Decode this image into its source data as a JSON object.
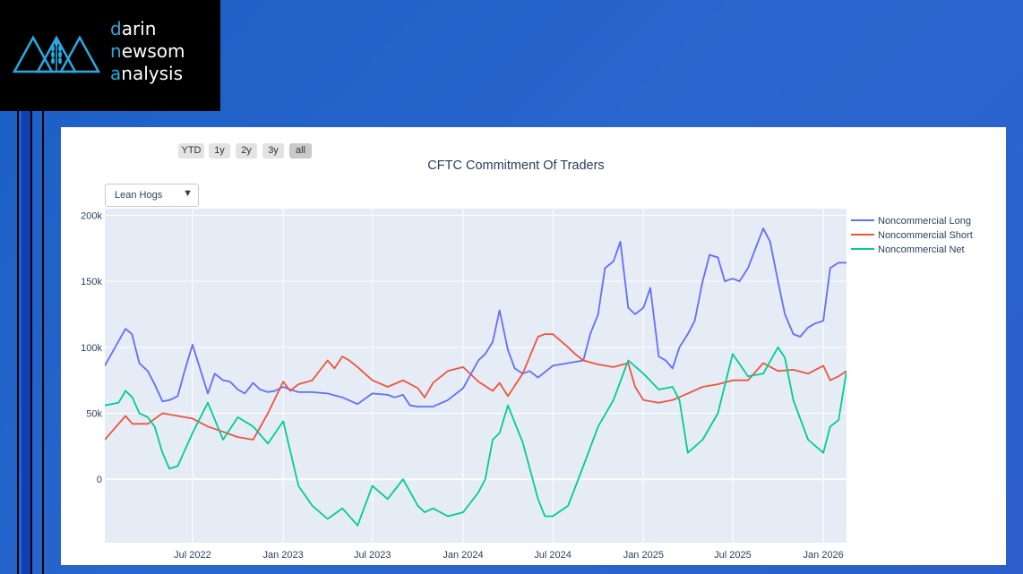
{
  "logo": {
    "lines": [
      {
        "first": "d",
        "rest": "arin"
      },
      {
        "first": "n",
        "rest": "ewsom"
      },
      {
        "first": "a",
        "rest": "nalysis"
      }
    ]
  },
  "colors": {
    "long": "#636efa",
    "short": "#ef553b",
    "net": "#00cc96",
    "plot_bg": "#e5ecf6",
    "accent": "#29a9e1"
  },
  "range_buttons": [
    "YTD",
    "1y",
    "2y",
    "3y",
    "all"
  ],
  "active_range": "all",
  "dropdown": {
    "selected": "Lean Hogs"
  },
  "chart_data": {
    "type": "line",
    "title": "CFTC Commitment Of Traders",
    "xlabel": "",
    "ylabel": "",
    "ylim": [
      -48000,
      205000
    ],
    "yticks": [
      0,
      50000,
      100000,
      150000,
      200000
    ],
    "ytick_labels": [
      "0",
      "50k",
      "100k",
      "150k",
      "200k"
    ],
    "x_start": "2022-01-04",
    "x_end": "2026-02-17",
    "xticks": [
      "2022-07-01",
      "2023-01-01",
      "2023-07-01",
      "2024-01-01",
      "2024-07-01",
      "2025-01-01",
      "2025-07-01",
      "2026-01-01"
    ],
    "xtick_labels": [
      "Jul 2022",
      "Jan 2023",
      "Jul 2023",
      "Jan 2024",
      "Jul 2024",
      "Jan 2025",
      "Jul 2025",
      "Jan 2026"
    ],
    "grid": true,
    "legend_position": "right",
    "series": [
      {
        "name": "Noncommercial Long",
        "x": [
          "2022-01-04",
          "2022-02-15",
          "2022-02-28",
          "2022-03-15",
          "2022-04-01",
          "2022-04-15",
          "2022-05-01",
          "2022-05-15",
          "2022-06-01",
          "2022-06-15",
          "2022-07-01",
          "2022-08-01",
          "2022-08-15",
          "2022-09-01",
          "2022-09-15",
          "2022-10-01",
          "2022-10-15",
          "2022-11-01",
          "2022-11-15",
          "2022-12-01",
          "2022-12-15",
          "2023-01-01",
          "2023-01-15",
          "2023-02-01",
          "2023-03-01",
          "2023-04-01",
          "2023-05-01",
          "2023-06-01",
          "2023-07-01",
          "2023-08-01",
          "2023-08-15",
          "2023-09-01",
          "2023-09-15",
          "2023-10-01",
          "2023-11-01",
          "2023-12-01",
          "2024-01-01",
          "2024-02-01",
          "2024-02-15",
          "2024-03-01",
          "2024-03-15",
          "2024-04-01",
          "2024-04-15",
          "2024-05-01",
          "2024-05-15",
          "2024-06-01",
          "2024-07-01",
          "2024-08-01",
          "2024-09-01",
          "2024-09-15",
          "2024-10-01",
          "2024-10-15",
          "2024-11-01",
          "2024-11-15",
          "2024-12-01",
          "2024-12-15",
          "2025-01-01",
          "2025-01-15",
          "2025-02-01",
          "2025-02-15",
          "2025-03-01",
          "2025-03-15",
          "2025-04-01",
          "2025-04-15",
          "2025-05-01",
          "2025-05-15",
          "2025-06-01",
          "2025-06-15",
          "2025-07-01",
          "2025-07-15",
          "2025-08-01",
          "2025-09-01",
          "2025-09-15",
          "2025-10-01",
          "2025-10-15",
          "2025-11-01",
          "2025-11-15",
          "2025-12-01",
          "2025-12-15",
          "2026-01-01",
          "2026-01-15",
          "2026-02-01",
          "2026-02-17"
        ],
        "values": [
          86000,
          114000,
          110000,
          88000,
          82000,
          72000,
          59000,
          60000,
          63000,
          82000,
          102000,
          65000,
          80000,
          75000,
          74000,
          68000,
          65000,
          73000,
          68000,
          66000,
          67000,
          70000,
          68000,
          66000,
          66000,
          65000,
          62000,
          57000,
          65000,
          64000,
          62000,
          64000,
          56000,
          55000,
          55000,
          60000,
          69000,
          90000,
          95000,
          104000,
          128000,
          98000,
          84000,
          80000,
          82000,
          77000,
          86000,
          88000,
          90000,
          110000,
          125000,
          160000,
          165000,
          180000,
          130000,
          125000,
          130000,
          145000,
          93000,
          90000,
          84000,
          100000,
          110000,
          120000,
          150000,
          170000,
          168000,
          150000,
          152000,
          150000,
          160000,
          190000,
          180000,
          150000,
          125000,
          110000,
          108000,
          115000,
          118000,
          120000,
          160000,
          164000,
          164000
        ]
      },
      {
        "name": "Noncommercial Short",
        "x": [
          "2022-01-04",
          "2022-02-15",
          "2022-03-01",
          "2022-04-01",
          "2022-05-01",
          "2022-06-01",
          "2022-07-01",
          "2022-08-01",
          "2022-09-01",
          "2022-10-01",
          "2022-11-01",
          "2022-12-01",
          "2023-01-01",
          "2023-01-15",
          "2023-02-01",
          "2023-03-01",
          "2023-04-01",
          "2023-04-15",
          "2023-05-01",
          "2023-05-15",
          "2023-06-01",
          "2023-07-01",
          "2023-08-01",
          "2023-09-01",
          "2023-10-01",
          "2023-10-15",
          "2023-11-01",
          "2023-12-01",
          "2024-01-01",
          "2024-02-01",
          "2024-03-01",
          "2024-03-15",
          "2024-04-01",
          "2024-05-01",
          "2024-06-01",
          "2024-06-15",
          "2024-07-01",
          "2024-08-01",
          "2024-08-15",
          "2024-09-01",
          "2024-10-01",
          "2024-11-01",
          "2024-12-01",
          "2024-12-15",
          "2025-01-01",
          "2025-02-01",
          "2025-03-01",
          "2025-04-01",
          "2025-05-01",
          "2025-06-01",
          "2025-07-01",
          "2025-08-01",
          "2025-09-01",
          "2025-10-01",
          "2025-11-01",
          "2025-12-01",
          "2026-01-01",
          "2026-01-15",
          "2026-02-01",
          "2026-02-17"
        ],
        "values": [
          30000,
          48000,
          42000,
          42000,
          50000,
          48000,
          46000,
          40000,
          36000,
          32000,
          30000,
          50000,
          74000,
          67000,
          72000,
          75000,
          90000,
          84000,
          93000,
          90000,
          85000,
          75000,
          70000,
          75000,
          69000,
          62000,
          73000,
          82000,
          85000,
          74000,
          67000,
          73000,
          63000,
          80000,
          108000,
          110000,
          110000,
          100000,
          95000,
          90000,
          87000,
          85000,
          88000,
          70000,
          60000,
          58000,
          60000,
          65000,
          70000,
          72000,
          75000,
          75000,
          88000,
          82000,
          83000,
          80000,
          86000,
          75000,
          78000,
          82000
        ]
      },
      {
        "name": "Noncommercial Net",
        "x": [
          "2022-01-04",
          "2022-02-01",
          "2022-02-15",
          "2022-03-01",
          "2022-03-15",
          "2022-04-01",
          "2022-04-15",
          "2022-05-01",
          "2022-05-15",
          "2022-06-01",
          "2022-07-01",
          "2022-08-01",
          "2022-09-01",
          "2022-10-01",
          "2022-11-01",
          "2022-12-01",
          "2023-01-01",
          "2023-02-01",
          "2023-03-01",
          "2023-04-01",
          "2023-05-01",
          "2023-06-01",
          "2023-07-01",
          "2023-08-01",
          "2023-09-01",
          "2023-10-01",
          "2023-10-15",
          "2023-11-01",
          "2023-12-01",
          "2024-01-01",
          "2024-02-01",
          "2024-02-15",
          "2024-03-01",
          "2024-03-15",
          "2024-04-01",
          "2024-05-01",
          "2024-06-01",
          "2024-06-15",
          "2024-07-01",
          "2024-08-01",
          "2024-09-01",
          "2024-10-01",
          "2024-11-01",
          "2024-12-01",
          "2025-01-01",
          "2025-02-01",
          "2025-03-01",
          "2025-03-15",
          "2025-04-01",
          "2025-05-01",
          "2025-06-01",
          "2025-07-01",
          "2025-08-01",
          "2025-09-01",
          "2025-10-01",
          "2025-10-15",
          "2025-11-01",
          "2025-12-01",
          "2026-01-01",
          "2026-01-15",
          "2026-02-01",
          "2026-02-17"
        ],
        "values": [
          56000,
          58000,
          67000,
          62000,
          50000,
          47000,
          40000,
          20000,
          8000,
          10000,
          35000,
          58000,
          30000,
          47000,
          40000,
          27000,
          44000,
          -5000,
          -20000,
          -30000,
          -22000,
          -35000,
          -5000,
          -15000,
          0,
          -20000,
          -25000,
          -22000,
          -28000,
          -25000,
          -10000,
          0,
          30000,
          35000,
          56000,
          28000,
          -15000,
          -28000,
          -28000,
          -20000,
          10000,
          40000,
          60000,
          90000,
          80000,
          68000,
          70000,
          60000,
          20000,
          30000,
          50000,
          95000,
          78000,
          80000,
          100000,
          92000,
          60000,
          30000,
          20000,
          40000,
          45000,
          82000
        ]
      }
    ]
  }
}
